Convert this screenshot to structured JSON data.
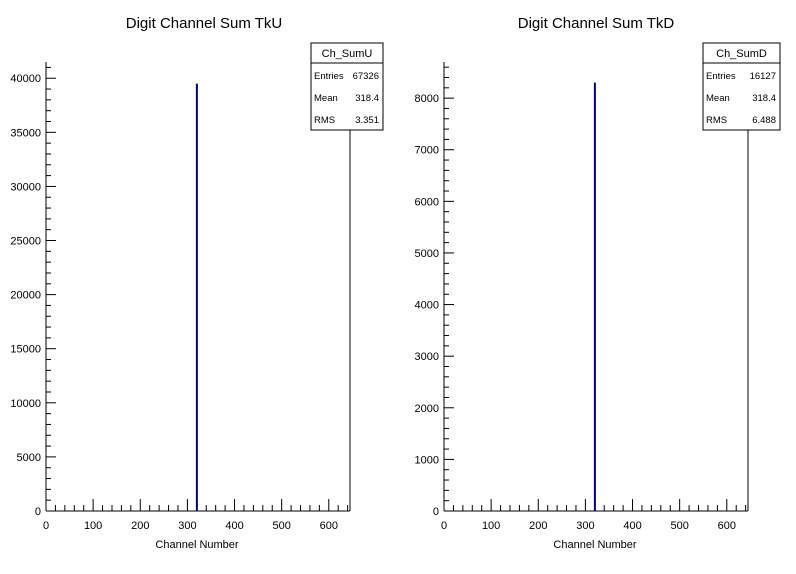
{
  "chart_data": [
    {
      "type": "bar",
      "title": "Digit Channel Sum TkU",
      "xlabel": "Channel Number",
      "ylabel": "",
      "xlim": [
        0,
        645
      ],
      "ylim": [
        0,
        41500
      ],
      "x_ticks": [
        0,
        100,
        200,
        300,
        400,
        500,
        600
      ],
      "x_tick_labels": [
        "0",
        "100",
        "200",
        "300",
        "400",
        "500",
        "600"
      ],
      "y_ticks": [
        0,
        5000,
        10000,
        15000,
        20000,
        25000,
        30000,
        35000,
        40000
      ],
      "y_tick_labels": [
        "0",
        "5000",
        "10000",
        "15000",
        "20000",
        "25000",
        "30000",
        "35000",
        "40000"
      ],
      "bars": [
        {
          "x0": 318,
          "x1": 320,
          "value": 39500
        }
      ],
      "bar_color": "#000080",
      "stats": {
        "name": "Ch_SumU",
        "rows": [
          {
            "label": "Entries",
            "value": "67326"
          },
          {
            "label": "Mean",
            "value": "318.4"
          },
          {
            "label": "RMS",
            "value": "3.351"
          }
        ]
      }
    },
    {
      "type": "bar",
      "title": "Digit Channel Sum TkD",
      "xlabel": "Channel Number",
      "ylabel": "",
      "xlim": [
        0,
        645
      ],
      "ylim": [
        0,
        8700
      ],
      "x_ticks": [
        0,
        100,
        200,
        300,
        400,
        500,
        600
      ],
      "x_tick_labels": [
        "0",
        "100",
        "200",
        "300",
        "400",
        "500",
        "600"
      ],
      "y_ticks": [
        0,
        1000,
        2000,
        3000,
        4000,
        5000,
        6000,
        7000,
        8000
      ],
      "y_tick_labels": [
        "0",
        "1000",
        "2000",
        "3000",
        "4000",
        "5000",
        "6000",
        "7000",
        "8000"
      ],
      "bars": [
        {
          "x0": 318,
          "x1": 320,
          "value": 8300
        }
      ],
      "bar_color": "#000080",
      "stats": {
        "name": "Ch_SumD",
        "rows": [
          {
            "label": "Entries",
            "value": "16127"
          },
          {
            "label": "Mean",
            "value": "318.4"
          },
          {
            "label": "RMS",
            "value": "6.488"
          }
        ]
      }
    }
  ]
}
